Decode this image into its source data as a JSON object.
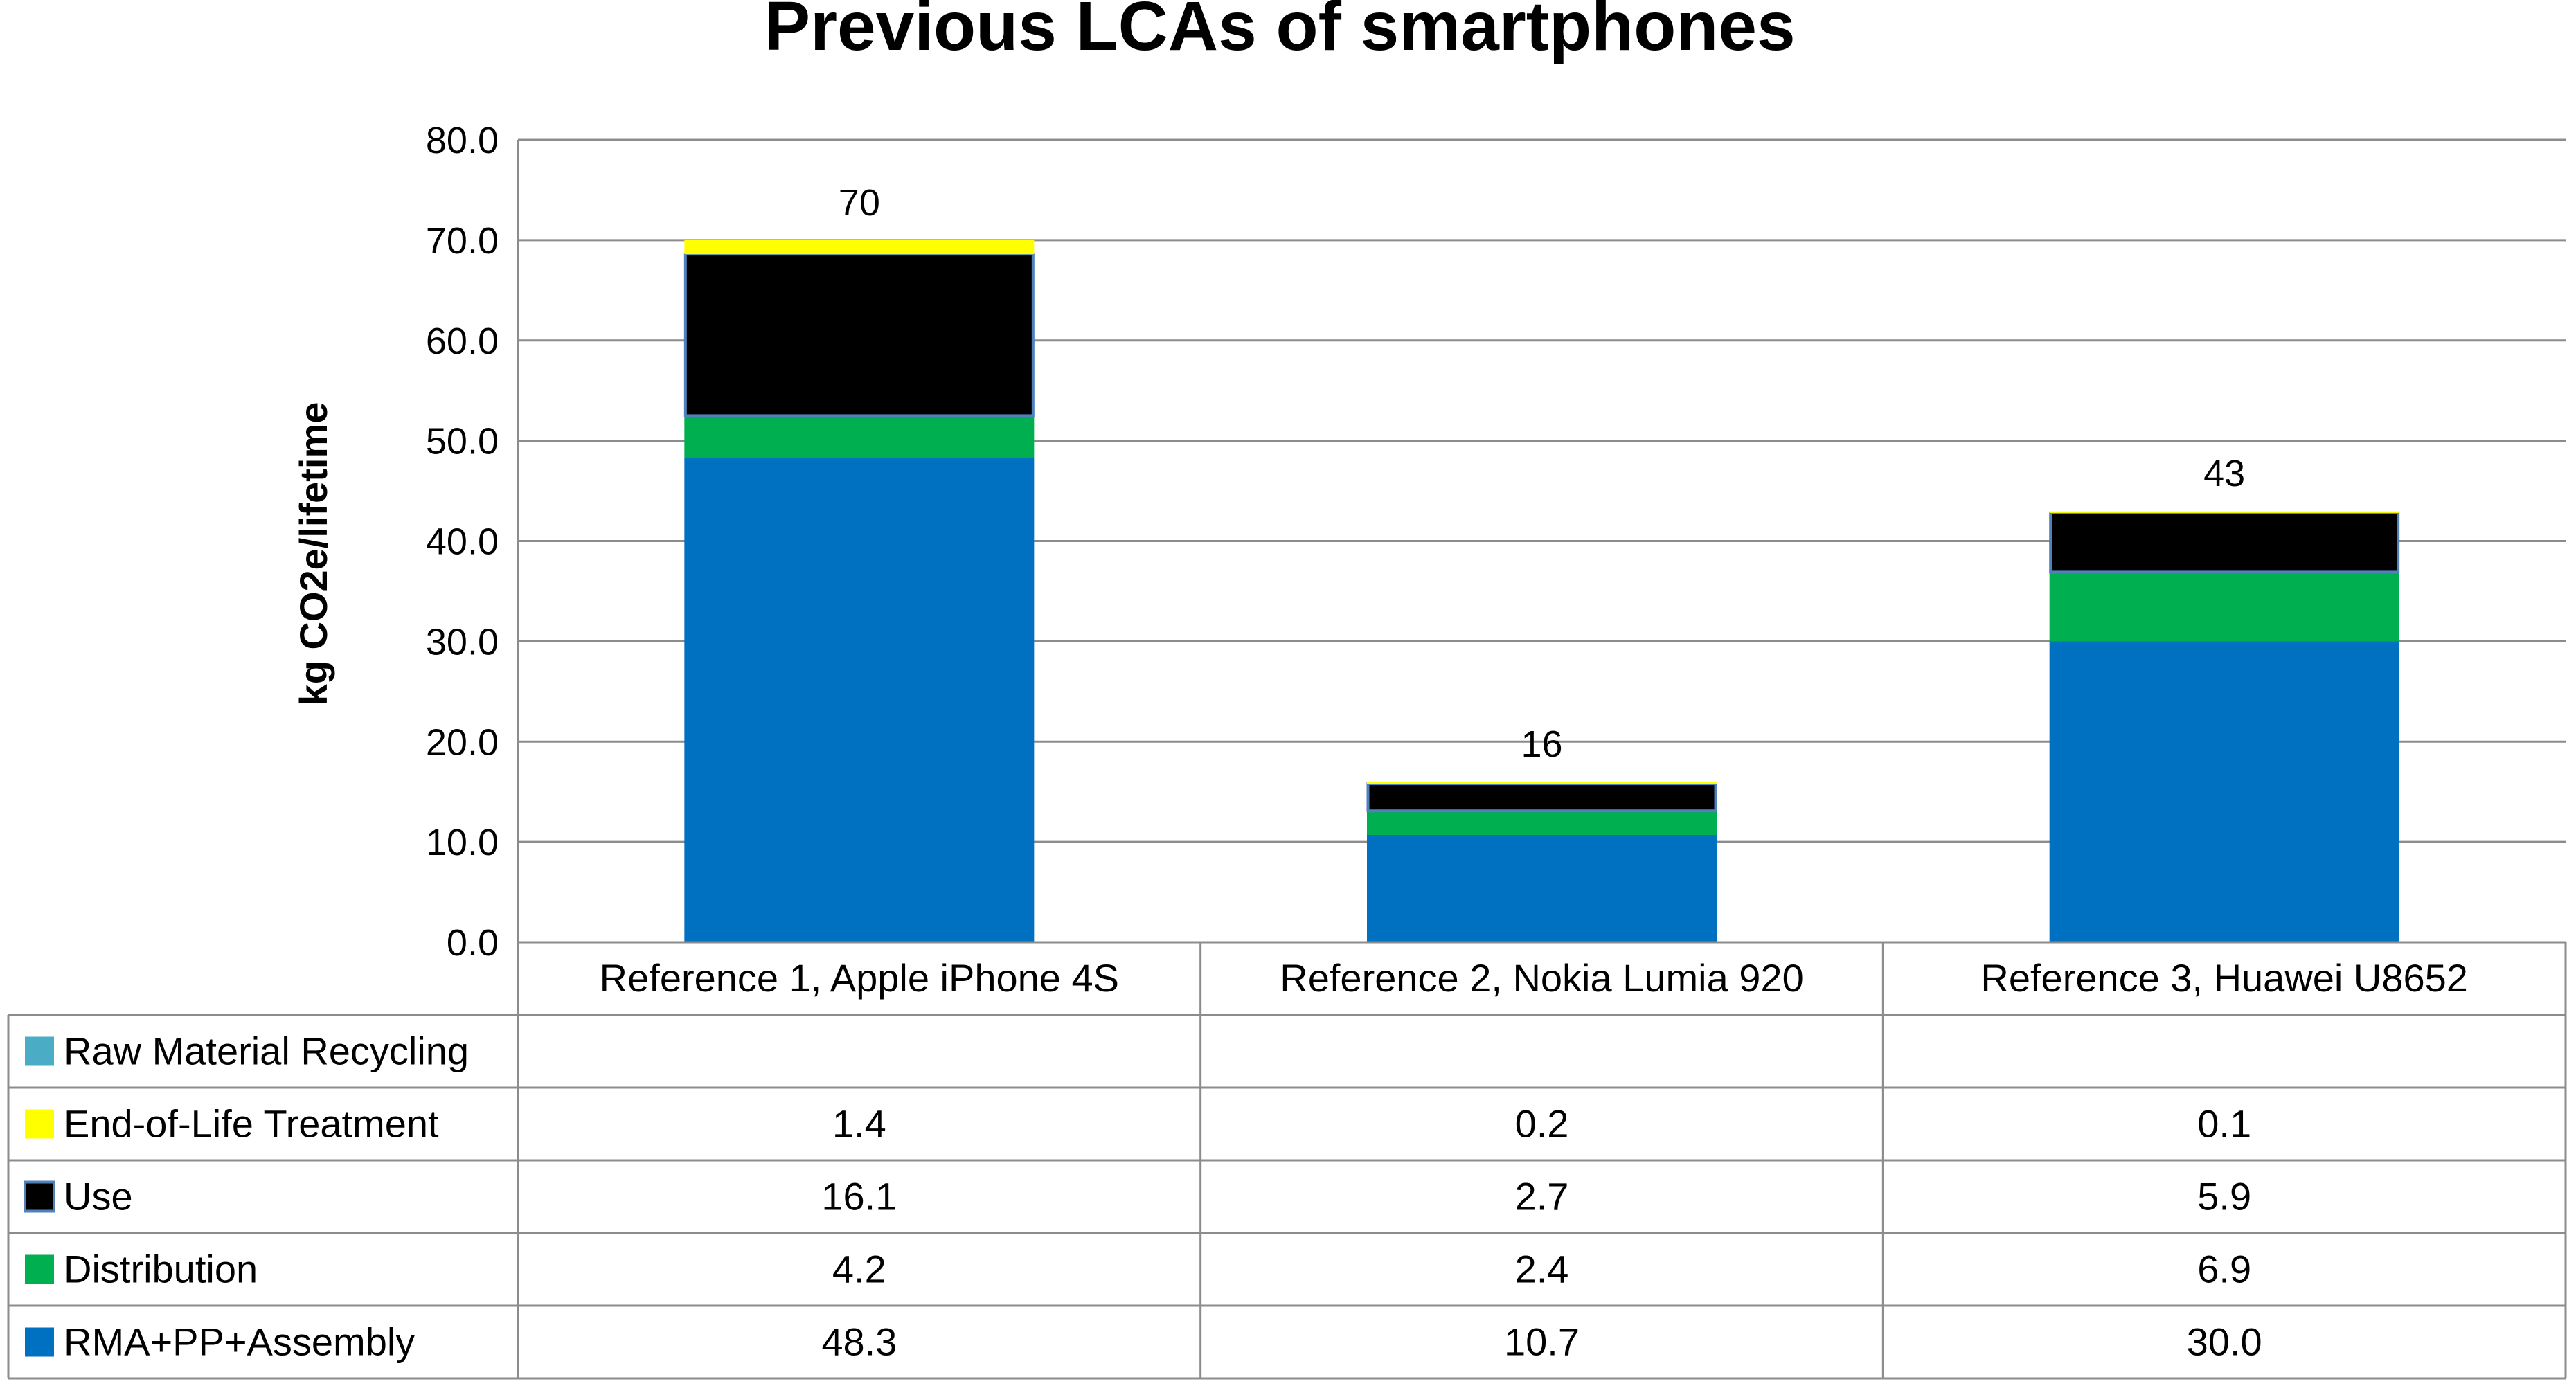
{
  "chart_data": {
    "type": "bar",
    "stacked": true,
    "title": "Previous LCAs of smartphones",
    "ylabel": "kg CO2e/lifetime",
    "xlabel": "",
    "ylim": [
      0,
      80
    ],
    "yticks": [
      "0.0",
      "10.0",
      "20.0",
      "30.0",
      "40.0",
      "50.0",
      "60.0",
      "70.0",
      "80.0"
    ],
    "grid": true,
    "legend": "table-left",
    "categories": [
      "Reference 1, Apple iPhone 4S",
      "Reference 2, Nokia Lumia 920",
      "Reference 3, Huawei U8652"
    ],
    "totals": [
      "70",
      "16",
      "43"
    ],
    "total_values": [
      70,
      16,
      43
    ],
    "series": [
      {
        "name": "Raw Material Recycling",
        "color": "#4bacc6",
        "values": [
          null,
          null,
          null
        ],
        "labels": [
          "",
          "",
          ""
        ]
      },
      {
        "name": "End-of-Life Treatment",
        "color": "#ffff00",
        "values": [
          1.4,
          0.2,
          0.1
        ],
        "labels": [
          "1.4",
          "0.2",
          "0.1"
        ]
      },
      {
        "name": "Use",
        "color": "#000000",
        "values": [
          16.1,
          2.7,
          5.9
        ],
        "labels": [
          "16.1",
          "2.7",
          "5.9"
        ]
      },
      {
        "name": "Distribution",
        "color": "#00b050",
        "values": [
          4.2,
          2.4,
          6.9
        ],
        "labels": [
          "4.2",
          "2.4",
          "6.9"
        ]
      },
      {
        "name": "RMA+PP+Assembly",
        "color": "#0070c0",
        "values": [
          48.3,
          10.7,
          30.0
        ],
        "labels": [
          "48.3",
          "10.7",
          "30.0"
        ]
      }
    ]
  }
}
